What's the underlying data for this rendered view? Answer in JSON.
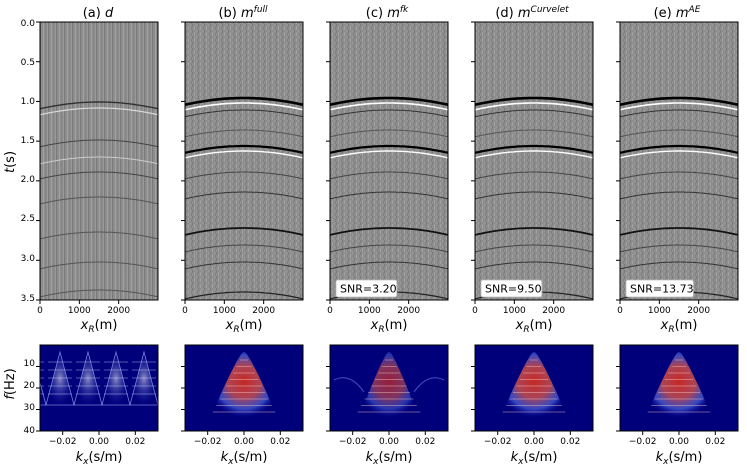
{
  "panels": [
    {
      "title_prefix": "(a) ",
      "title_math": "d",
      "title_sup": "",
      "snr": ""
    },
    {
      "title_prefix": "(b) ",
      "title_math": "m",
      "title_sup": "full",
      "snr": ""
    },
    {
      "title_prefix": "(c) ",
      "title_math": "m",
      "title_sup": "fk",
      "snr": "SNR=3.20"
    },
    {
      "title_prefix": "(d) ",
      "title_math": "m",
      "title_sup": "Curvelet",
      "snr": "SNR=9.50"
    },
    {
      "title_prefix": "(e) ",
      "title_math": "m",
      "title_sup": "AE",
      "snr": "SNR=13.73"
    }
  ],
  "top_axes": {
    "y_ticks": [
      "0.0",
      "0.5",
      "1.0",
      "1.5",
      "2.0",
      "2.5",
      "3.0",
      "3.5"
    ],
    "x_ticks": [
      "0",
      "1000",
      "2000"
    ],
    "ylabel_main": "t",
    "ylabel_unit": "(s)",
    "xlabel_main": "x",
    "xlabel_sub": "R",
    "xlabel_unit": "(m)"
  },
  "bottom_axes": {
    "y_ticks": [
      "10",
      "20",
      "30",
      "40"
    ],
    "x_ticks": [
      "−0.02",
      "0.00",
      "0.02"
    ],
    "ylabel_main": "f",
    "ylabel_unit": "(Hz)",
    "xlabel_main": "k",
    "xlabel_sub": "x",
    "xlabel_unit": "(s/m)"
  },
  "colors": {
    "seismic_gray": "#8e8e8e",
    "spectrum_bg": "#00007a",
    "spectrum_hot": "#d0281e",
    "event_dark": "#000000",
    "event_light": "#ffffff"
  }
}
